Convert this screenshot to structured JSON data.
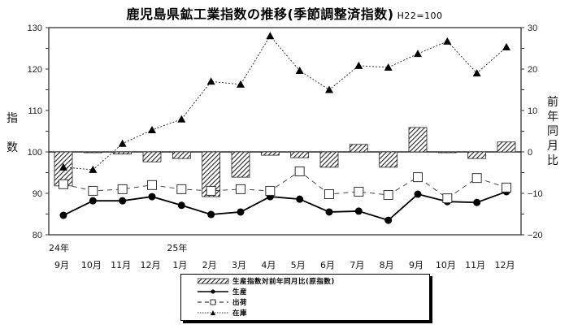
{
  "title": {
    "main": "鹿児島県鉱工業指数の推移(季節調整済指数)",
    "unit": "H22=100"
  },
  "axes": {
    "left_label_chars": [
      "指",
      "数"
    ],
    "right_label_chars": [
      "前",
      "年",
      "同",
      "月",
      "比"
    ],
    "left_ticks": [
      "130",
      "120",
      "110",
      "100",
      "90",
      "80"
    ],
    "right_ticks": [
      "30",
      "20",
      "10",
      "0",
      "-10",
      "-20"
    ]
  },
  "x_labels": {
    "year_markers": [
      {
        "index": 0,
        "label": "24年"
      },
      {
        "index": 4,
        "label": "25年"
      }
    ],
    "months": [
      "9月",
      "10月",
      "11月",
      "12月",
      "1月",
      "2月",
      "3月",
      "4月",
      "5月",
      "6月",
      "7月",
      "8月",
      "9月",
      "10月",
      "11月",
      "12月"
    ]
  },
  "legend": {
    "items": [
      {
        "label": "生産指数対前年同月比(原指数)",
        "style": "hatched-bar"
      },
      {
        "label": "生産",
        "style": "solid-circle"
      },
      {
        "label": "出荷",
        "style": "dashed-square"
      },
      {
        "label": "在庫",
        "style": "dotted-triangle"
      }
    ]
  },
  "chart_data": {
    "type": "bar+line",
    "title": "鹿児島県鉱工業指数の推移(季節調整済指数) H22=100",
    "categories": [
      "24年9月",
      "10月",
      "11月",
      "12月",
      "25年1月",
      "2月",
      "3月",
      "4月",
      "5月",
      "6月",
      "7月",
      "8月",
      "9月",
      "10月",
      "11月",
      "12月"
    ],
    "ylabel": "指数",
    "y2label": "前年同月比",
    "ylim": [
      80,
      130
    ],
    "y2lim": [
      -20,
      30
    ],
    "grid": false,
    "legend_position": "bottom",
    "series": [
      {
        "name": "生産指数対前年同月比(原指数)",
        "type": "bar",
        "axis": "right",
        "values": [
          -8.2,
          -0.1,
          -0.5,
          -2.4,
          -1.6,
          -10.8,
          -6.1,
          -0.8,
          -1.4,
          -3.7,
          1.8,
          -3.7,
          5.9,
          -0.1,
          -1.6,
          2.4
        ]
      },
      {
        "name": "生産",
        "type": "line",
        "axis": "left",
        "marker": "circle",
        "line": "solid",
        "values": [
          84.7,
          88.2,
          88.2,
          89.2,
          87.1,
          84.9,
          85.5,
          89.2,
          88.6,
          85.5,
          85.7,
          83.5,
          89.8,
          88.0,
          87.8,
          90.4
        ]
      },
      {
        "name": "出荷",
        "type": "line",
        "axis": "left",
        "marker": "square-open",
        "line": "dashed",
        "values": [
          92.2,
          90.6,
          91.0,
          92.0,
          91.0,
          90.6,
          91.0,
          90.6,
          95.3,
          89.8,
          90.4,
          89.6,
          93.9,
          88.8,
          93.7,
          91.4
        ]
      },
      {
        "name": "在庫",
        "type": "line",
        "axis": "left",
        "marker": "triangle",
        "line": "dotted",
        "values": [
          96.3,
          95.7,
          102.0,
          105.3,
          107.9,
          117.0,
          116.3,
          128.0,
          119.6,
          115.0,
          120.8,
          120.4,
          123.7,
          126.7,
          119.0,
          125.3
        ]
      }
    ]
  }
}
